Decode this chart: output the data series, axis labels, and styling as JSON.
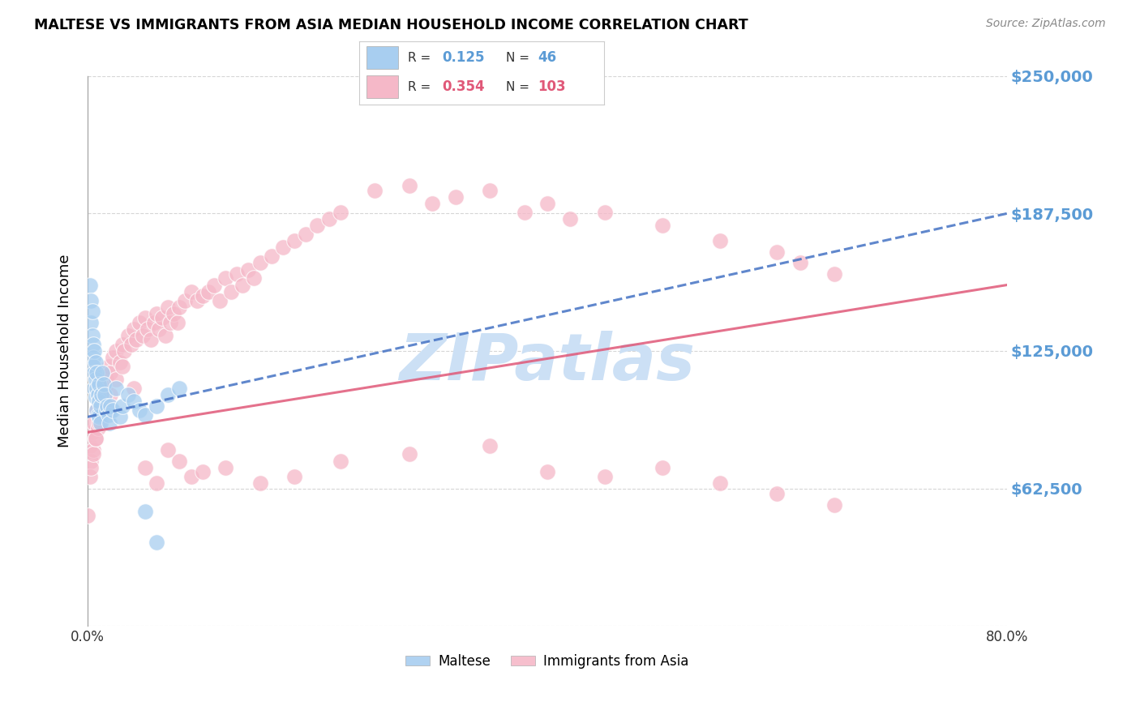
{
  "title": "MALTESE VS IMMIGRANTS FROM ASIA MEDIAN HOUSEHOLD INCOME CORRELATION CHART",
  "source": "Source: ZipAtlas.com",
  "ylabel": "Median Household Income",
  "ylim": [
    0,
    250000
  ],
  "xlim": [
    0,
    0.8
  ],
  "yticks": [
    0,
    62500,
    125000,
    187500,
    250000
  ],
  "ytick_labels": [
    "",
    "$62,500",
    "$125,000",
    "$187,500",
    "$250,000"
  ],
  "xticks": [
    0.0,
    0.1,
    0.2,
    0.3,
    0.4,
    0.5,
    0.6,
    0.7,
    0.8
  ],
  "xtick_labels": [
    "0.0%",
    "",
    "",
    "",
    "",
    "",
    "",
    "",
    "80.0%"
  ],
  "maltese_R": 0.125,
  "maltese_N": 46,
  "asia_R": 0.354,
  "asia_N": 103,
  "maltese_color": "#a8cef0",
  "asia_color": "#f5b8c8",
  "maltese_line_color": "#4472c4",
  "asia_line_color": "#e05878",
  "watermark": "ZIPatlas",
  "watermark_color": "#cce0f5",
  "legend_maltese_label": "Maltese",
  "legend_asia_label": "Immigrants from Asia",
  "background_color": "#ffffff",
  "grid_color": "#cccccc",
  "right_label_color": "#5b9bd5",
  "maltese_x": [
    0.002,
    0.003,
    0.003,
    0.004,
    0.004,
    0.005,
    0.005,
    0.005,
    0.006,
    0.006,
    0.006,
    0.007,
    0.007,
    0.007,
    0.008,
    0.008,
    0.008,
    0.009,
    0.009,
    0.01,
    0.01,
    0.01,
    0.011,
    0.011,
    0.012,
    0.013,
    0.014,
    0.015,
    0.016,
    0.017,
    0.018,
    0.019,
    0.02,
    0.022,
    0.025,
    0.028,
    0.03,
    0.035,
    0.04,
    0.045,
    0.05,
    0.06,
    0.07,
    0.08,
    0.05,
    0.06
  ],
  "maltese_y": [
    155000,
    148000,
    138000,
    143000,
    132000,
    128000,
    122000,
    118000,
    125000,
    115000,
    108000,
    120000,
    112000,
    104000,
    115000,
    108000,
    98000,
    105000,
    96000,
    110000,
    102000,
    95000,
    100000,
    92000,
    105000,
    115000,
    110000,
    105000,
    98000,
    100000,
    96000,
    92000,
    100000,
    98000,
    108000,
    95000,
    100000,
    105000,
    102000,
    98000,
    96000,
    100000,
    105000,
    108000,
    52000,
    38000
  ],
  "asia_x": [
    0.002,
    0.003,
    0.004,
    0.005,
    0.006,
    0.007,
    0.008,
    0.009,
    0.01,
    0.012,
    0.013,
    0.015,
    0.016,
    0.018,
    0.02,
    0.022,
    0.025,
    0.028,
    0.03,
    0.032,
    0.035,
    0.038,
    0.04,
    0.042,
    0.045,
    0.048,
    0.05,
    0.052,
    0.055,
    0.058,
    0.06,
    0.062,
    0.065,
    0.068,
    0.07,
    0.072,
    0.075,
    0.078,
    0.08,
    0.085,
    0.09,
    0.095,
    0.1,
    0.105,
    0.11,
    0.115,
    0.12,
    0.125,
    0.13,
    0.135,
    0.14,
    0.145,
    0.15,
    0.16,
    0.17,
    0.18,
    0.19,
    0.2,
    0.21,
    0.22,
    0.25,
    0.28,
    0.3,
    0.32,
    0.35,
    0.38,
    0.4,
    0.42,
    0.45,
    0.5,
    0.55,
    0.6,
    0.62,
    0.65,
    0.002,
    0.003,
    0.005,
    0.007,
    0.01,
    0.015,
    0.02,
    0.025,
    0.03,
    0.04,
    0.05,
    0.06,
    0.07,
    0.08,
    0.09,
    0.1,
    0.12,
    0.15,
    0.18,
    0.22,
    0.28,
    0.35,
    0.4,
    0.45,
    0.5,
    0.55,
    0.6,
    0.65,
    0.0
  ],
  "asia_y": [
    82000,
    75000,
    88000,
    80000,
    92000,
    85000,
    98000,
    90000,
    95000,
    105000,
    100000,
    108000,
    112000,
    118000,
    115000,
    122000,
    125000,
    120000,
    128000,
    125000,
    132000,
    128000,
    135000,
    130000,
    138000,
    132000,
    140000,
    135000,
    130000,
    138000,
    142000,
    135000,
    140000,
    132000,
    145000,
    138000,
    142000,
    138000,
    145000,
    148000,
    152000,
    148000,
    150000,
    152000,
    155000,
    148000,
    158000,
    152000,
    160000,
    155000,
    162000,
    158000,
    165000,
    168000,
    172000,
    175000,
    178000,
    182000,
    185000,
    188000,
    198000,
    200000,
    192000,
    195000,
    198000,
    188000,
    192000,
    185000,
    188000,
    182000,
    175000,
    170000,
    165000,
    160000,
    68000,
    72000,
    78000,
    85000,
    92000,
    100000,
    105000,
    112000,
    118000,
    108000,
    72000,
    65000,
    80000,
    75000,
    68000,
    70000,
    72000,
    65000,
    68000,
    75000,
    78000,
    82000,
    70000,
    68000,
    72000,
    65000,
    60000,
    55000,
    50000
  ]
}
